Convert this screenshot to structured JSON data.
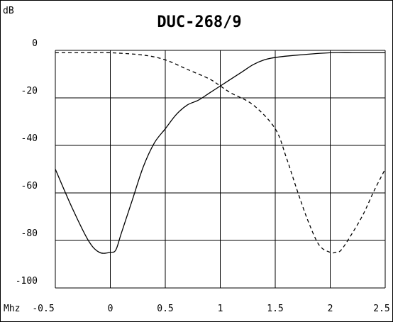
{
  "chart_data": {
    "type": "line",
    "title": "DUC-268/9",
    "ylabel": "dB",
    "xlabel": "Mhz",
    "x_ticks": [
      "-0.5",
      "0",
      "0.5",
      "1",
      "1.5",
      "2",
      "2.5"
    ],
    "y_ticks": [
      "0",
      "-20",
      "-40",
      "-60",
      "-80",
      "-100"
    ],
    "xlim": [
      -0.5,
      2.5
    ],
    "ylim": [
      -100,
      0
    ],
    "grid": true,
    "series": [
      {
        "style": "solid",
        "x": [
          -0.5,
          -0.35,
          -0.2,
          -0.1,
          0.0,
          0.05,
          0.1,
          0.2,
          0.3,
          0.4,
          0.5,
          0.6,
          0.7,
          0.8,
          0.9,
          1.0,
          1.1,
          1.2,
          1.3,
          1.4,
          1.5,
          1.7,
          2.0,
          2.2,
          2.5
        ],
        "y": [
          -50,
          -66,
          -80,
          -85,
          -85,
          -84,
          -77,
          -63,
          -49,
          -39,
          -33,
          -27,
          -23,
          -21,
          -18,
          -15,
          -12,
          -9,
          -6,
          -4,
          -3,
          -2,
          -1,
          -1,
          -1
        ]
      },
      {
        "style": "dashed",
        "x": [
          -0.5,
          -0.2,
          0.0,
          0.3,
          0.5,
          0.7,
          0.9,
          1.0,
          1.1,
          1.3,
          1.5,
          1.6,
          1.7,
          1.8,
          1.9,
          2.0,
          2.05,
          2.1,
          2.2,
          2.3,
          2.4,
          2.5
        ],
        "y": [
          -1,
          -1,
          -1,
          -2,
          -4,
          -8,
          -12,
          -15,
          -18,
          -23,
          -33,
          -45,
          -59,
          -72,
          -82,
          -85,
          -85,
          -84,
          -77,
          -69,
          -59,
          -50
        ]
      }
    ]
  }
}
